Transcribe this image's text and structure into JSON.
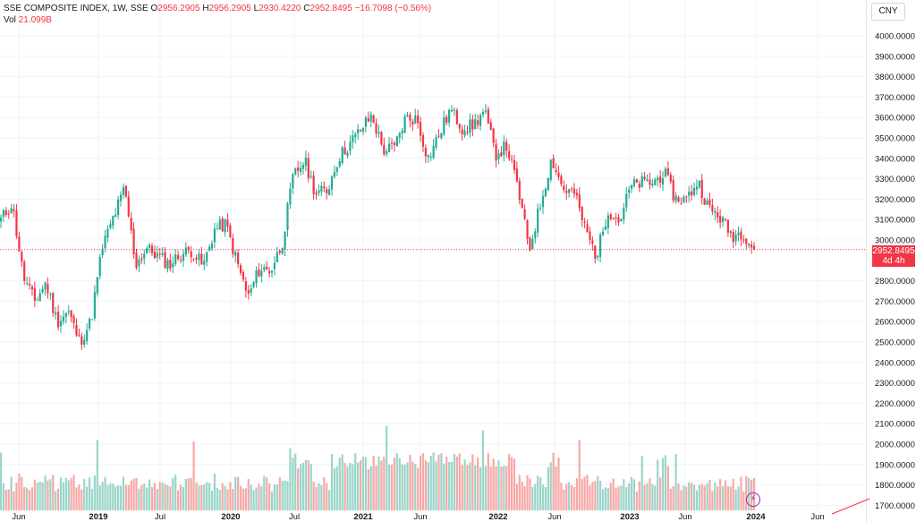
{
  "legend": {
    "symbol": "SSE COMPOSITE INDEX, 1W, SSE",
    "open_label": "O",
    "open": "2956.2905",
    "high_label": "H",
    "high": "2956.2905",
    "low_label": "L",
    "low": "2930.4220",
    "close_label": "C",
    "close": "2952.8495",
    "change": "−16.7098 (−0.56%)",
    "vol_label": "Vol",
    "vol": "21.099B"
  },
  "currency_button": "CNY",
  "last_price": {
    "value": "2952.8495",
    "countdown": "4d 4h"
  },
  "colors": {
    "up": "#22ab94",
    "down": "#f23645",
    "up_vol": "#9bd5c9",
    "down_vol": "#f7a9a7",
    "grid": "#f0f3fa"
  },
  "bolt_icon": "lightning-icon",
  "chart_data": {
    "type": "candlestick",
    "title": "SSE COMPOSITE INDEX",
    "interval": "1W",
    "x_ticks": [
      "Jun",
      "2019",
      "Jul",
      "2020",
      "Jul",
      "2021",
      "Jun",
      "2022",
      "Jun",
      "2023",
      "Jun",
      "2024",
      "Jun"
    ],
    "y_ticks": [
      "4000.0000",
      "3900.0000",
      "3800.0000",
      "3700.0000",
      "3600.0000",
      "3500.0000",
      "3400.0000",
      "3300.0000",
      "3200.0000",
      "3100.0000",
      "3000.0000",
      "2800.0000",
      "2700.0000",
      "2600.0000",
      "2500.0000",
      "2400.0000",
      "2300.0000",
      "2200.0000",
      "2100.0000",
      "2000.0000",
      "1900.0000",
      "1800.0000",
      "1700.0000"
    ],
    "ylim": [
      1700,
      4040
    ],
    "grid": true,
    "close_path": [
      [
        "2018-05",
        3100
      ],
      [
        "2018-06",
        3180
      ],
      [
        "2018-07",
        2820
      ],
      [
        "2018-08",
        2700
      ],
      [
        "2018-09",
        2790
      ],
      [
        "2018-10",
        2600
      ],
      [
        "2018-11",
        2650
      ],
      [
        "2018-12",
        2500
      ],
      [
        "2019-01",
        2600
      ],
      [
        "2019-02",
        2960
      ],
      [
        "2019-03",
        3110
      ],
      [
        "2019-04",
        3250
      ],
      [
        "2019-05",
        2880
      ],
      [
        "2019-06",
        2960
      ],
      [
        "2019-07",
        2920
      ],
      [
        "2019-08",
        2880
      ],
      [
        "2019-09",
        2930
      ],
      [
        "2019-10",
        2950
      ],
      [
        "2019-11",
        2870
      ],
      [
        "2019-12",
        3050
      ],
      [
        "2020-01",
        3080
      ],
      [
        "2020-02",
        2890
      ],
      [
        "2020-03",
        2720
      ],
      [
        "2020-04",
        2860
      ],
      [
        "2020-05",
        2850
      ],
      [
        "2020-06",
        2980
      ],
      [
        "2020-07",
        3310
      ],
      [
        "2020-08",
        3390
      ],
      [
        "2020-09",
        3230
      ],
      [
        "2020-10",
        3240
      ],
      [
        "2020-11",
        3400
      ],
      [
        "2020-12",
        3470
      ],
      [
        "2021-01",
        3540
      ],
      [
        "2021-02",
        3610
      ],
      [
        "2021-03",
        3440
      ],
      [
        "2021-04",
        3450
      ],
      [
        "2021-05",
        3600
      ],
      [
        "2021-06",
        3590
      ],
      [
        "2021-07",
        3400
      ],
      [
        "2021-08",
        3520
      ],
      [
        "2021-09",
        3640
      ],
      [
        "2021-10",
        3550
      ],
      [
        "2021-11",
        3560
      ],
      [
        "2021-12",
        3630
      ],
      [
        "2022-01",
        3420
      ],
      [
        "2022-02",
        3460
      ],
      [
        "2022-03",
        3250
      ],
      [
        "2022-04",
        2950
      ],
      [
        "2022-05",
        3180
      ],
      [
        "2022-06",
        3400
      ],
      [
        "2022-07",
        3250
      ],
      [
        "2022-08",
        3230
      ],
      [
        "2022-09",
        3050
      ],
      [
        "2022-10",
        2920
      ],
      [
        "2022-11",
        3150
      ],
      [
        "2022-12",
        3090
      ],
      [
        "2023-01",
        3260
      ],
      [
        "2023-02",
        3280
      ],
      [
        "2023-03",
        3280
      ],
      [
        "2023-04",
        3330
      ],
      [
        "2023-05",
        3200
      ],
      [
        "2023-06",
        3200
      ],
      [
        "2023-07",
        3290
      ],
      [
        "2023-08",
        3150
      ],
      [
        "2023-09",
        3110
      ],
      [
        "2023-10",
        3020
      ],
      [
        "2023-11",
        3040
      ],
      [
        "2023-12",
        2953
      ]
    ],
    "series": [
      {
        "name": "Vol",
        "type": "bar",
        "unit": "B"
      }
    ],
    "last_close": 2952.8495
  }
}
